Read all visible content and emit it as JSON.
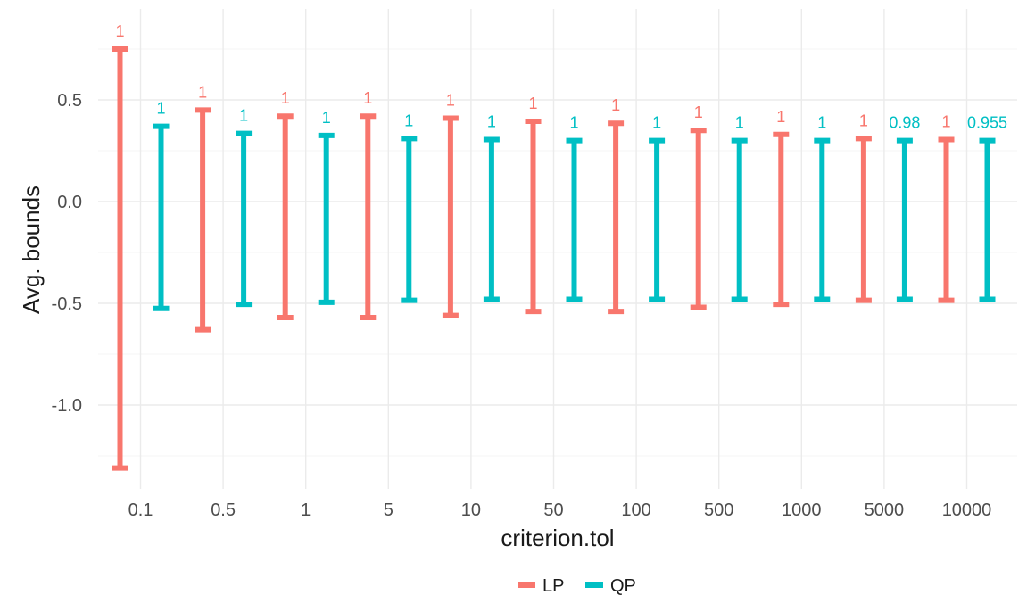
{
  "chart_data": {
    "type": "errorbar",
    "xlabel": "criterion.tol",
    "ylabel": "Avg. bounds",
    "categories": [
      "0.1",
      "0.5",
      "1",
      "5",
      "10",
      "50",
      "100",
      "500",
      "1000",
      "5000",
      "10000"
    ],
    "ylim": [
      -1.35,
      0.8
    ],
    "yticks": [
      0.5,
      0.0,
      -0.5,
      -1.0
    ],
    "ytick_labels": [
      "0.5",
      "0.0",
      "-0.5",
      "-1.0"
    ],
    "grid": true,
    "legend_position": "bottom",
    "series": [
      {
        "name": "LP",
        "color": "#F8766D",
        "lower": [
          -1.31,
          -0.63,
          -0.57,
          -0.57,
          -0.56,
          -0.54,
          -0.54,
          -0.52,
          -0.505,
          -0.485,
          -0.485
        ],
        "upper": [
          0.75,
          0.45,
          0.42,
          0.42,
          0.41,
          0.395,
          0.385,
          0.35,
          0.33,
          0.31,
          0.305
        ],
        "labels": [
          "1",
          "1",
          "1",
          "1",
          "1",
          "1",
          "1",
          "1",
          "1",
          "1",
          "1"
        ]
      },
      {
        "name": "QP",
        "color": "#00BFC4",
        "lower": [
          -0.525,
          -0.505,
          -0.495,
          -0.485,
          -0.48,
          -0.48,
          -0.48,
          -0.48,
          -0.48,
          -0.48,
          -0.48
        ],
        "upper": [
          0.37,
          0.335,
          0.325,
          0.31,
          0.305,
          0.3,
          0.3,
          0.3,
          0.3,
          0.3,
          0.3
        ],
        "labels": [
          "1",
          "1",
          "1",
          "1",
          "1",
          "1",
          "1",
          "1",
          "1",
          "0.98",
          "0.955"
        ]
      }
    ]
  }
}
